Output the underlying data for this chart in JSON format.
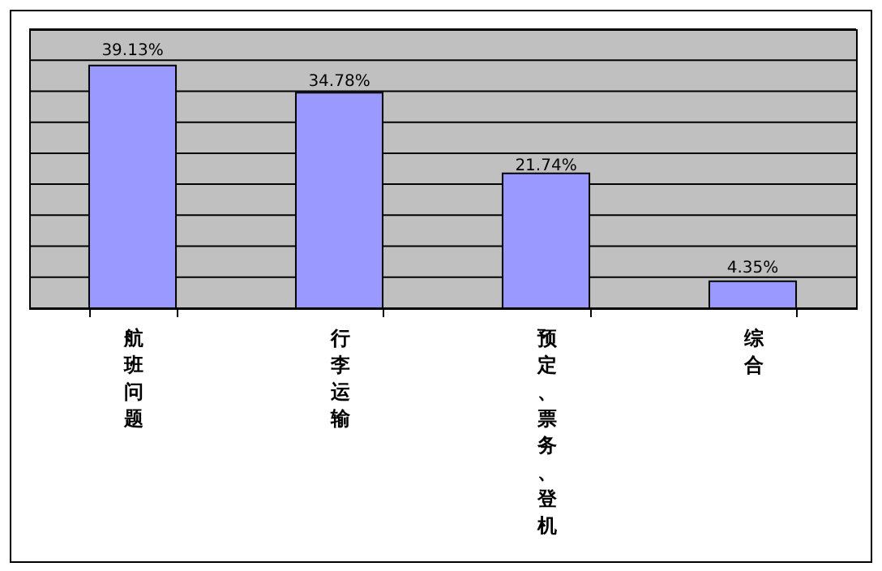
{
  "chart_data": {
    "type": "bar",
    "categories": [
      "航班问题",
      "行李运输",
      "预定、票务、登机",
      "综合"
    ],
    "values": [
      39.13,
      34.78,
      21.74,
      4.35
    ],
    "value_labels": [
      "39.13%",
      "34.78%",
      "21.74%",
      "4.35%"
    ],
    "color": "#9999ff",
    "ylim": [
      0,
      45
    ],
    "yticks": [
      {
        "value": 0,
        "label": null
      },
      {
        "value": 5,
        "label": null
      },
      {
        "value": 10,
        "label": null
      },
      {
        "value": 15,
        "label": null
      },
      {
        "value": 20,
        "label": null
      },
      {
        "value": 25,
        "label": null
      },
      {
        "value": 30,
        "label": null
      },
      {
        "value": 35,
        "label": null
      },
      {
        "value": 40,
        "label": null
      },
      {
        "value": 45,
        "label": null
      }
    ],
    "tick_labels": "x",
    "grid": true
  }
}
